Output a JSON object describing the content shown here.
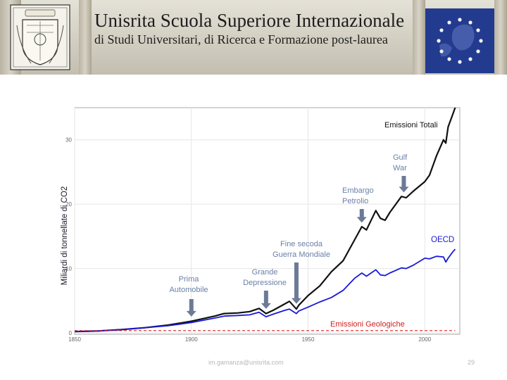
{
  "header": {
    "title": "Unisrita  Scuola Superiore Internazionale",
    "subtitle": "di Studi Universitari, di Ricerca e Formazione post-laurea",
    "logo_icon": "university-crest-icon",
    "flag_icon": "eu-flag-icon"
  },
  "chart_data": {
    "type": "line",
    "title": "",
    "xlabel": "",
    "ylabel": "Miliardi di tonnellate di CO2",
    "xlim": [
      1850,
      2015
    ],
    "ylim": [
      0,
      35
    ],
    "x_ticks": [
      1850,
      1900,
      1950,
      2000
    ],
    "y_ticks": [
      0,
      10,
      20,
      30
    ],
    "grid": true,
    "colors": {
      "total": "#111111",
      "oecd": "#1a1ad6",
      "geological": "#e02020",
      "arrow": "#6c7a96",
      "label": "#6a7fa8"
    },
    "series": [
      {
        "name": "Emissioni Totali",
        "x": [
          1850,
          1860,
          1870,
          1880,
          1890,
          1900,
          1910,
          1914,
          1920,
          1925,
          1929,
          1932,
          1935,
          1940,
          1942,
          1945,
          1946,
          1950,
          1955,
          1960,
          1965,
          1970,
          1973,
          1975,
          1979,
          1981,
          1983,
          1985,
          1990,
          1992,
          1995,
          2000,
          2002,
          2005,
          2008,
          2009,
          2010,
          2012,
          2013
        ],
        "y": [
          0.2,
          0.3,
          0.5,
          0.8,
          1.2,
          1.8,
          2.6,
          3.0,
          3.1,
          3.3,
          3.8,
          3.0,
          3.5,
          4.5,
          4.9,
          3.7,
          4.3,
          5.8,
          7.3,
          9.5,
          11.2,
          14.5,
          16.5,
          16.0,
          19.0,
          17.8,
          17.5,
          18.7,
          21.2,
          21.0,
          22.0,
          23.5,
          24.5,
          27.5,
          30.0,
          29.5,
          32.0,
          34.0,
          35.0
        ]
      },
      {
        "name": "OECD",
        "x": [
          1850,
          1860,
          1870,
          1880,
          1890,
          1900,
          1910,
          1914,
          1920,
          1925,
          1929,
          1932,
          1935,
          1940,
          1942,
          1945,
          1946,
          1950,
          1955,
          1960,
          1965,
          1970,
          1973,
          1975,
          1979,
          1981,
          1983,
          1985,
          1990,
          1992,
          1995,
          2000,
          2002,
          2005,
          2008,
          2009,
          2010,
          2012,
          2013
        ],
        "y": [
          0.2,
          0.3,
          0.5,
          0.8,
          1.1,
          1.6,
          2.3,
          2.6,
          2.7,
          2.8,
          3.2,
          2.5,
          2.9,
          3.5,
          3.7,
          3.0,
          3.4,
          4.0,
          4.8,
          5.5,
          6.6,
          8.5,
          9.3,
          8.8,
          9.8,
          9.0,
          8.9,
          9.3,
          10.1,
          10.0,
          10.5,
          11.6,
          11.5,
          11.9,
          11.8,
          11.0,
          11.6,
          12.6,
          13.0
        ]
      },
      {
        "name": "Emissioni Geologiche",
        "x": [
          1850,
          2013
        ],
        "y": [
          0.35,
          0.35
        ]
      }
    ],
    "annotations": [
      {
        "id": "prima",
        "lines": [
          "Prima",
          "Automobile"
        ],
        "year": 1900,
        "value": 2.2
      },
      {
        "id": "grande",
        "lines": [
          "Grande",
          "Depressione"
        ],
        "year": 1932,
        "value": 3.4
      },
      {
        "id": "fine",
        "lines": [
          "Fine secoda",
          "Guerra Mondiale"
        ],
        "year": 1945,
        "value": 4.2
      },
      {
        "id": "embargo",
        "lines": [
          "Embargo",
          "Petrolio"
        ],
        "year": 1973,
        "value": 16.8
      },
      {
        "id": "gulf",
        "lines": [
          "Gulf",
          "War"
        ],
        "year": 1991,
        "value": 21.5
      }
    ]
  },
  "footer": {
    "email": "im.gamanza@unisrita.com",
    "page_number": "29"
  }
}
